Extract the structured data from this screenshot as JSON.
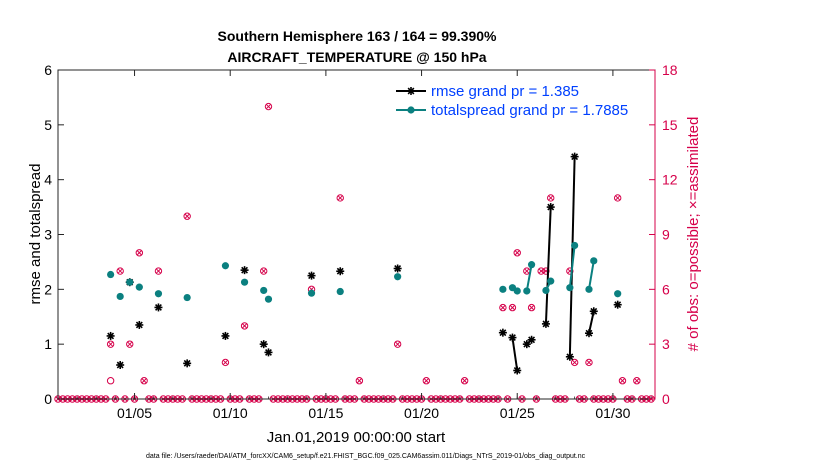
{
  "chart_data": {
    "type": "line",
    "title": "Southern Hemisphere 163 / 164 = 99.390%",
    "subtitle": "AIRCRAFT_TEMPERATURE @ 150 hPa",
    "xlabel": "Jan.01,2019 00:00:00 start",
    "ylabel": "rmse and totalspread",
    "y2label": "# of obs: o=possible; ×=assimilated",
    "footer": "data file: /Users/raeder/DAI/ATM_forcXX/CAM6_setup/f.e21.FHIST_BGC.f09_025.CAM6assim.011/Diags_NTrS_2019-01/obs_diag_output.nc",
    "xlim": [
      1,
      32.2
    ],
    "ylim": [
      0,
      6
    ],
    "y2lim": [
      0,
      18
    ],
    "x_ticks": [
      {
        "v": 5,
        "label": "01/05"
      },
      {
        "v": 10,
        "label": "01/10"
      },
      {
        "v": 15,
        "label": "01/15"
      },
      {
        "v": 20,
        "label": "01/20"
      },
      {
        "v": 25,
        "label": "01/25"
      },
      {
        "v": 30,
        "label": "01/30"
      }
    ],
    "y_ticks": [
      "0",
      "1",
      "2",
      "3",
      "4",
      "5",
      "6"
    ],
    "y2_ticks": [
      "0",
      "3",
      "6",
      "9",
      "12",
      "15",
      "18"
    ],
    "colors": {
      "rmse": "#000000",
      "spread": "#0b8080",
      "obs": "#d6004a",
      "legend_text": "#0040ff"
    },
    "series": [
      {
        "name": "rmse grand pr = 1.385",
        "key": "rmse",
        "points": [
          [
            3.75,
            1.15
          ],
          [
            4.25,
            0.62
          ],
          [
            4.75,
            2.13
          ],
          [
            5.25,
            1.35
          ],
          [
            6.25,
            1.67
          ],
          [
            7.75,
            0.65
          ],
          [
            9.75,
            1.15
          ],
          [
            10.75,
            2.35
          ],
          [
            11.75,
            1.0
          ],
          [
            12.0,
            0.85
          ],
          [
            14.25,
            2.25
          ],
          [
            15.75,
            2.33
          ],
          [
            18.75,
            2.38
          ],
          [
            24.25,
            1.21
          ],
          [
            24.75,
            1.12
          ],
          [
            25.0,
            0.52
          ],
          [
            25.5,
            1.0
          ],
          [
            25.75,
            1.08
          ],
          [
            26.5,
            1.37
          ],
          [
            26.75,
            3.5
          ],
          [
            27.75,
            0.77
          ],
          [
            28.0,
            4.42
          ],
          [
            28.75,
            1.2
          ],
          [
            29.0,
            1.6
          ],
          [
            30.25,
            1.72
          ]
        ],
        "segments": [
          [
            [
              24.75,
              1.12
            ],
            [
              25.0,
              0.52
            ]
          ],
          [
            [
              25.5,
              1.0
            ],
            [
              25.75,
              1.08
            ]
          ],
          [
            [
              26.5,
              1.37
            ],
            [
              26.75,
              3.5
            ]
          ],
          [
            [
              27.75,
              0.77
            ],
            [
              28.0,
              4.42
            ]
          ],
          [
            [
              28.75,
              1.2
            ],
            [
              29.0,
              1.6
            ]
          ]
        ]
      },
      {
        "name": "totalspread grand pr = 1.7885",
        "key": "spread",
        "points": [
          [
            3.75,
            2.27
          ],
          [
            4.25,
            1.87
          ],
          [
            4.75,
            2.13
          ],
          [
            5.25,
            2.04
          ],
          [
            6.25,
            1.92
          ],
          [
            7.75,
            1.85
          ],
          [
            9.75,
            2.43
          ],
          [
            10.75,
            2.13
          ],
          [
            11.75,
            1.98
          ],
          [
            12.0,
            1.82
          ],
          [
            14.25,
            1.93
          ],
          [
            15.75,
            1.96
          ],
          [
            18.75,
            2.23
          ],
          [
            24.25,
            2.0
          ],
          [
            24.75,
            2.03
          ],
          [
            25.0,
            1.97
          ],
          [
            25.5,
            1.97
          ],
          [
            25.75,
            2.45
          ],
          [
            26.5,
            1.98
          ],
          [
            26.75,
            2.15
          ],
          [
            27.75,
            2.03
          ],
          [
            28.0,
            2.8
          ],
          [
            28.75,
            2.0
          ],
          [
            29.0,
            2.52
          ],
          [
            30.25,
            1.92
          ]
        ],
        "segments": [
          [
            [
              24.75,
              2.03
            ],
            [
              25.0,
              1.97
            ]
          ],
          [
            [
              25.5,
              1.97
            ],
            [
              25.75,
              2.45
            ]
          ],
          [
            [
              26.5,
              1.98
            ],
            [
              26.75,
              2.15
            ]
          ],
          [
            [
              27.75,
              2.03
            ],
            [
              28.0,
              2.8
            ]
          ],
          [
            [
              28.75,
              2.0
            ],
            [
              29.0,
              2.52
            ]
          ]
        ]
      }
    ],
    "obs_possible": [
      [
        1.0,
        0
      ],
      [
        1.25,
        0
      ],
      [
        1.5,
        0
      ],
      [
        1.75,
        0
      ],
      [
        2.0,
        0
      ],
      [
        2.25,
        0
      ],
      [
        2.5,
        0
      ],
      [
        2.75,
        0
      ],
      [
        3.0,
        0
      ],
      [
        3.25,
        0
      ],
      [
        3.5,
        0
      ],
      [
        3.75,
        1
      ],
      [
        3.75,
        3
      ],
      [
        4.0,
        0
      ],
      [
        4.25,
        7
      ],
      [
        4.5,
        0
      ],
      [
        4.75,
        3
      ],
      [
        5.0,
        0
      ],
      [
        5.25,
        8
      ],
      [
        5.5,
        1
      ],
      [
        5.75,
        0
      ],
      [
        6.0,
        0
      ],
      [
        6.25,
        7
      ],
      [
        6.5,
        0
      ],
      [
        6.75,
        0
      ],
      [
        7.0,
        0
      ],
      [
        7.25,
        0
      ],
      [
        7.5,
        0
      ],
      [
        7.75,
        10
      ],
      [
        8.0,
        0
      ],
      [
        8.25,
        0
      ],
      [
        8.5,
        0
      ],
      [
        8.75,
        0
      ],
      [
        9.0,
        0
      ],
      [
        9.25,
        0
      ],
      [
        9.5,
        0
      ],
      [
        9.75,
        2
      ],
      [
        10.0,
        0
      ],
      [
        10.25,
        0
      ],
      [
        10.5,
        0
      ],
      [
        10.75,
        4
      ],
      [
        11.0,
        0
      ],
      [
        11.25,
        0
      ],
      [
        11.5,
        0
      ],
      [
        11.75,
        7
      ],
      [
        12.0,
        16
      ],
      [
        12.25,
        0
      ],
      [
        12.5,
        0
      ],
      [
        12.75,
        0
      ],
      [
        13.0,
        0
      ],
      [
        13.25,
        0
      ],
      [
        13.5,
        0
      ],
      [
        13.75,
        0
      ],
      [
        14.0,
        0
      ],
      [
        14.25,
        6
      ],
      [
        14.5,
        0
      ],
      [
        14.75,
        0
      ],
      [
        15.0,
        0
      ],
      [
        15.25,
        0
      ],
      [
        15.5,
        0
      ],
      [
        15.75,
        11
      ],
      [
        16.0,
        0
      ],
      [
        16.25,
        0
      ],
      [
        16.5,
        0
      ],
      [
        16.75,
        1
      ],
      [
        17.0,
        0
      ],
      [
        17.25,
        0
      ],
      [
        17.5,
        0
      ],
      [
        17.75,
        0
      ],
      [
        18.0,
        0
      ],
      [
        18.25,
        0
      ],
      [
        18.5,
        0
      ],
      [
        18.75,
        3
      ],
      [
        19.0,
        0
      ],
      [
        19.25,
        0
      ],
      [
        19.5,
        0
      ],
      [
        19.75,
        0
      ],
      [
        20.0,
        0
      ],
      [
        20.25,
        1
      ],
      [
        20.5,
        0
      ],
      [
        20.75,
        0
      ],
      [
        21.0,
        0
      ],
      [
        21.25,
        0
      ],
      [
        21.5,
        0
      ],
      [
        21.75,
        0
      ],
      [
        22.0,
        0
      ],
      [
        22.25,
        1
      ],
      [
        22.5,
        0
      ],
      [
        22.75,
        0
      ],
      [
        23.0,
        0
      ],
      [
        23.25,
        0
      ],
      [
        23.5,
        0
      ],
      [
        23.75,
        0
      ],
      [
        24.0,
        0
      ],
      [
        24.25,
        5
      ],
      [
        24.5,
        0
      ],
      [
        24.75,
        5
      ],
      [
        25.0,
        8
      ],
      [
        25.25,
        0
      ],
      [
        25.5,
        7
      ],
      [
        25.75,
        5
      ],
      [
        26.0,
        0
      ],
      [
        26.25,
        7
      ],
      [
        26.5,
        7
      ],
      [
        26.75,
        11
      ],
      [
        27.0,
        0
      ],
      [
        27.25,
        0
      ],
      [
        27.5,
        0
      ],
      [
        27.75,
        7
      ],
      [
        28.0,
        2
      ],
      [
        28.25,
        0
      ],
      [
        28.5,
        0
      ],
      [
        28.75,
        2
      ],
      [
        29.0,
        0
      ],
      [
        29.25,
        0
      ],
      [
        29.5,
        0
      ],
      [
        29.75,
        0
      ],
      [
        30.0,
        0
      ],
      [
        30.25,
        11
      ],
      [
        30.5,
        1
      ],
      [
        30.75,
        0
      ],
      [
        31.0,
        0
      ],
      [
        31.25,
        1
      ],
      [
        31.5,
        0
      ],
      [
        31.75,
        0
      ],
      [
        32.0,
        0
      ]
    ],
    "obs_possible_only": [
      [
        3.75,
        1
      ]
    ],
    "legend": {
      "location": "top-right"
    }
  }
}
